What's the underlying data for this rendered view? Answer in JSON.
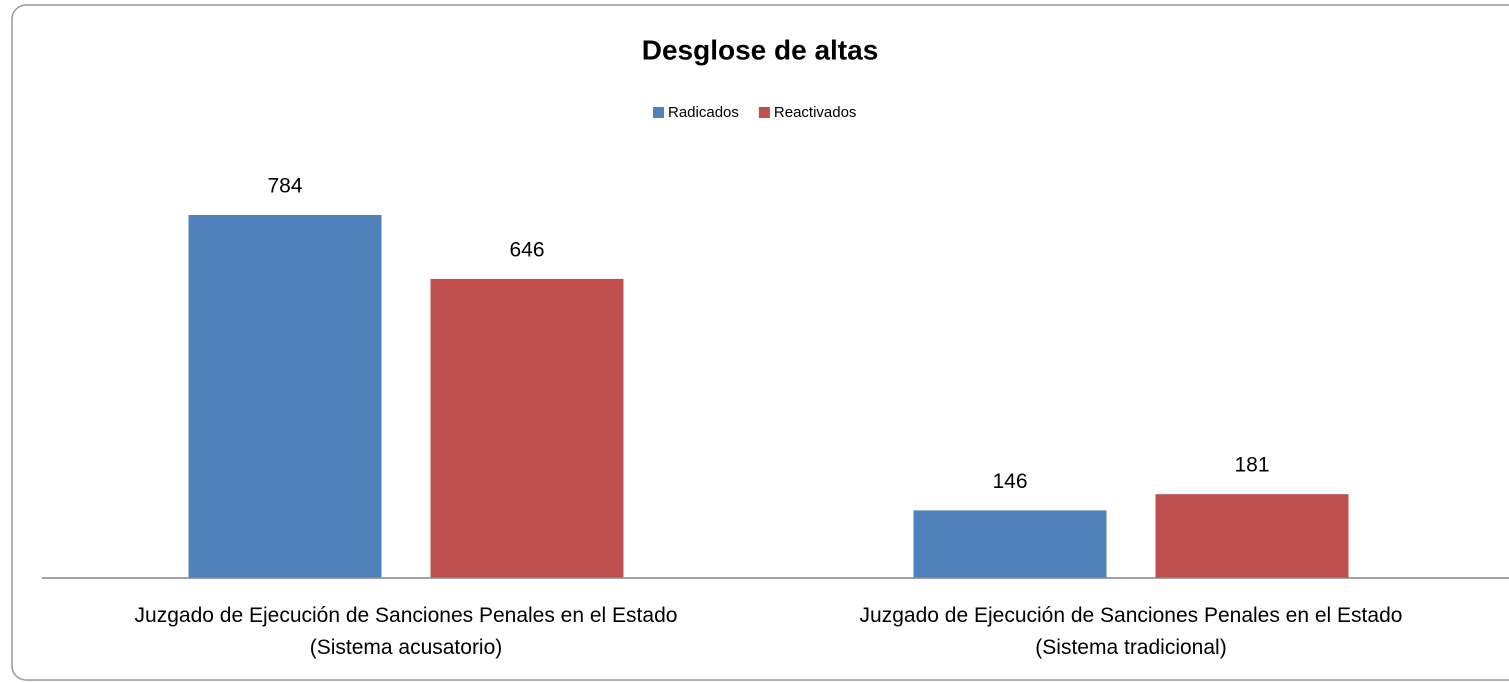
{
  "chart_data": {
    "type": "bar",
    "title": "Desglose de altas",
    "categories": [
      "Juzgado de Ejecución de Sanciones Penales en el Estado\n(Sistema acusatorio)",
      "Juzgado de Ejecución de Sanciones Penales en el Estado\n(Sistema tradicional)"
    ],
    "series": [
      {
        "name": "Radicados",
        "color": "#4f81bd",
        "values": [
          784,
          146
        ]
      },
      {
        "name": "Reactivados",
        "color": "#c0504d",
        "values": [
          646,
          181
        ]
      }
    ],
    "ylim": [
      0,
      900
    ],
    "legend": "top"
  }
}
